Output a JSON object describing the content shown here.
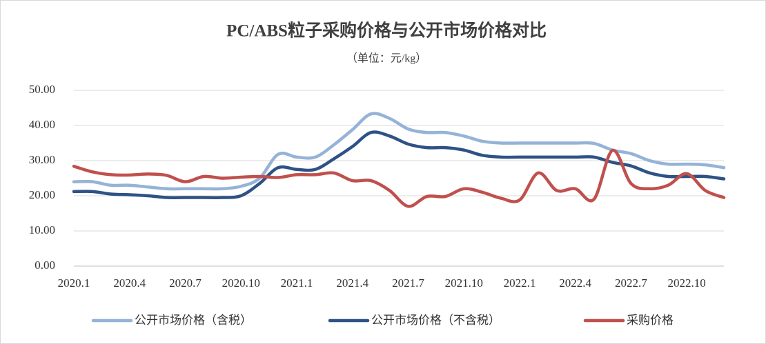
{
  "chart_data": {
    "type": "line",
    "title": "PC/ABS粒子采购价格与公开市场价格对比",
    "subtitle": "（单位：元/kg）",
    "categories": [
      "2020.1",
      null,
      null,
      "2020.4",
      null,
      null,
      "2020.7",
      null,
      null,
      "2020.10",
      null,
      null,
      "2021.1",
      null,
      null,
      "2021.4",
      null,
      null,
      "2021.7",
      null,
      null,
      "2021.10",
      null,
      null,
      "2022.1",
      null,
      null,
      "2022.4",
      null,
      null,
      "2022.7",
      null,
      null,
      "2022.10",
      null,
      null
    ],
    "series": [
      {
        "name": "公开市场价格（含税）",
        "color": "#95b3d7",
        "values": [
          24,
          24,
          23,
          23,
          22.5,
          22,
          22,
          22,
          22,
          22.7,
          25,
          31.8,
          31,
          31,
          34.5,
          38.8,
          43.3,
          42,
          39,
          38,
          38,
          37,
          35.5,
          35,
          35,
          35,
          35,
          35,
          34.9,
          33,
          32,
          30,
          29,
          29,
          28.8,
          28
        ]
      },
      {
        "name": "公开市场价格（不含税）",
        "color": "#2e5286",
        "values": [
          21.2,
          21.2,
          20.5,
          20.3,
          20,
          19.5,
          19.5,
          19.5,
          19.5,
          20,
          23.5,
          28,
          27.5,
          27.5,
          30.5,
          34,
          38,
          37,
          34.7,
          33.7,
          33.7,
          33,
          31.5,
          31,
          31,
          31,
          31,
          31,
          31,
          29.5,
          28.5,
          26.5,
          25.5,
          25.5,
          25.5,
          24.8
        ]
      },
      {
        "name": "采购价格",
        "color": "#c0504d",
        "values": [
          28.4,
          26.8,
          26,
          25.9,
          26.2,
          25.8,
          24,
          25.5,
          25,
          25.3,
          25.5,
          25.2,
          26,
          26,
          26.5,
          24.3,
          24.3,
          21.5,
          17,
          19.8,
          19.8,
          22,
          21,
          19.3,
          18.8,
          26.5,
          21.5,
          22,
          19,
          32.9,
          23.5,
          22,
          23,
          26.3,
          21.5,
          19.5
        ]
      }
    ],
    "ylim": [
      0,
      50
    ],
    "yticks": [
      {
        "value": 0,
        "label": "0.00"
      },
      {
        "value": 10,
        "label": "10.00"
      },
      {
        "value": 20,
        "label": "20.00"
      },
      {
        "value": 30,
        "label": "30.00"
      },
      {
        "value": 40,
        "label": "40.00"
      },
      {
        "value": 50,
        "label": "50.00"
      }
    ],
    "grid": true,
    "legend": "bottom"
  }
}
